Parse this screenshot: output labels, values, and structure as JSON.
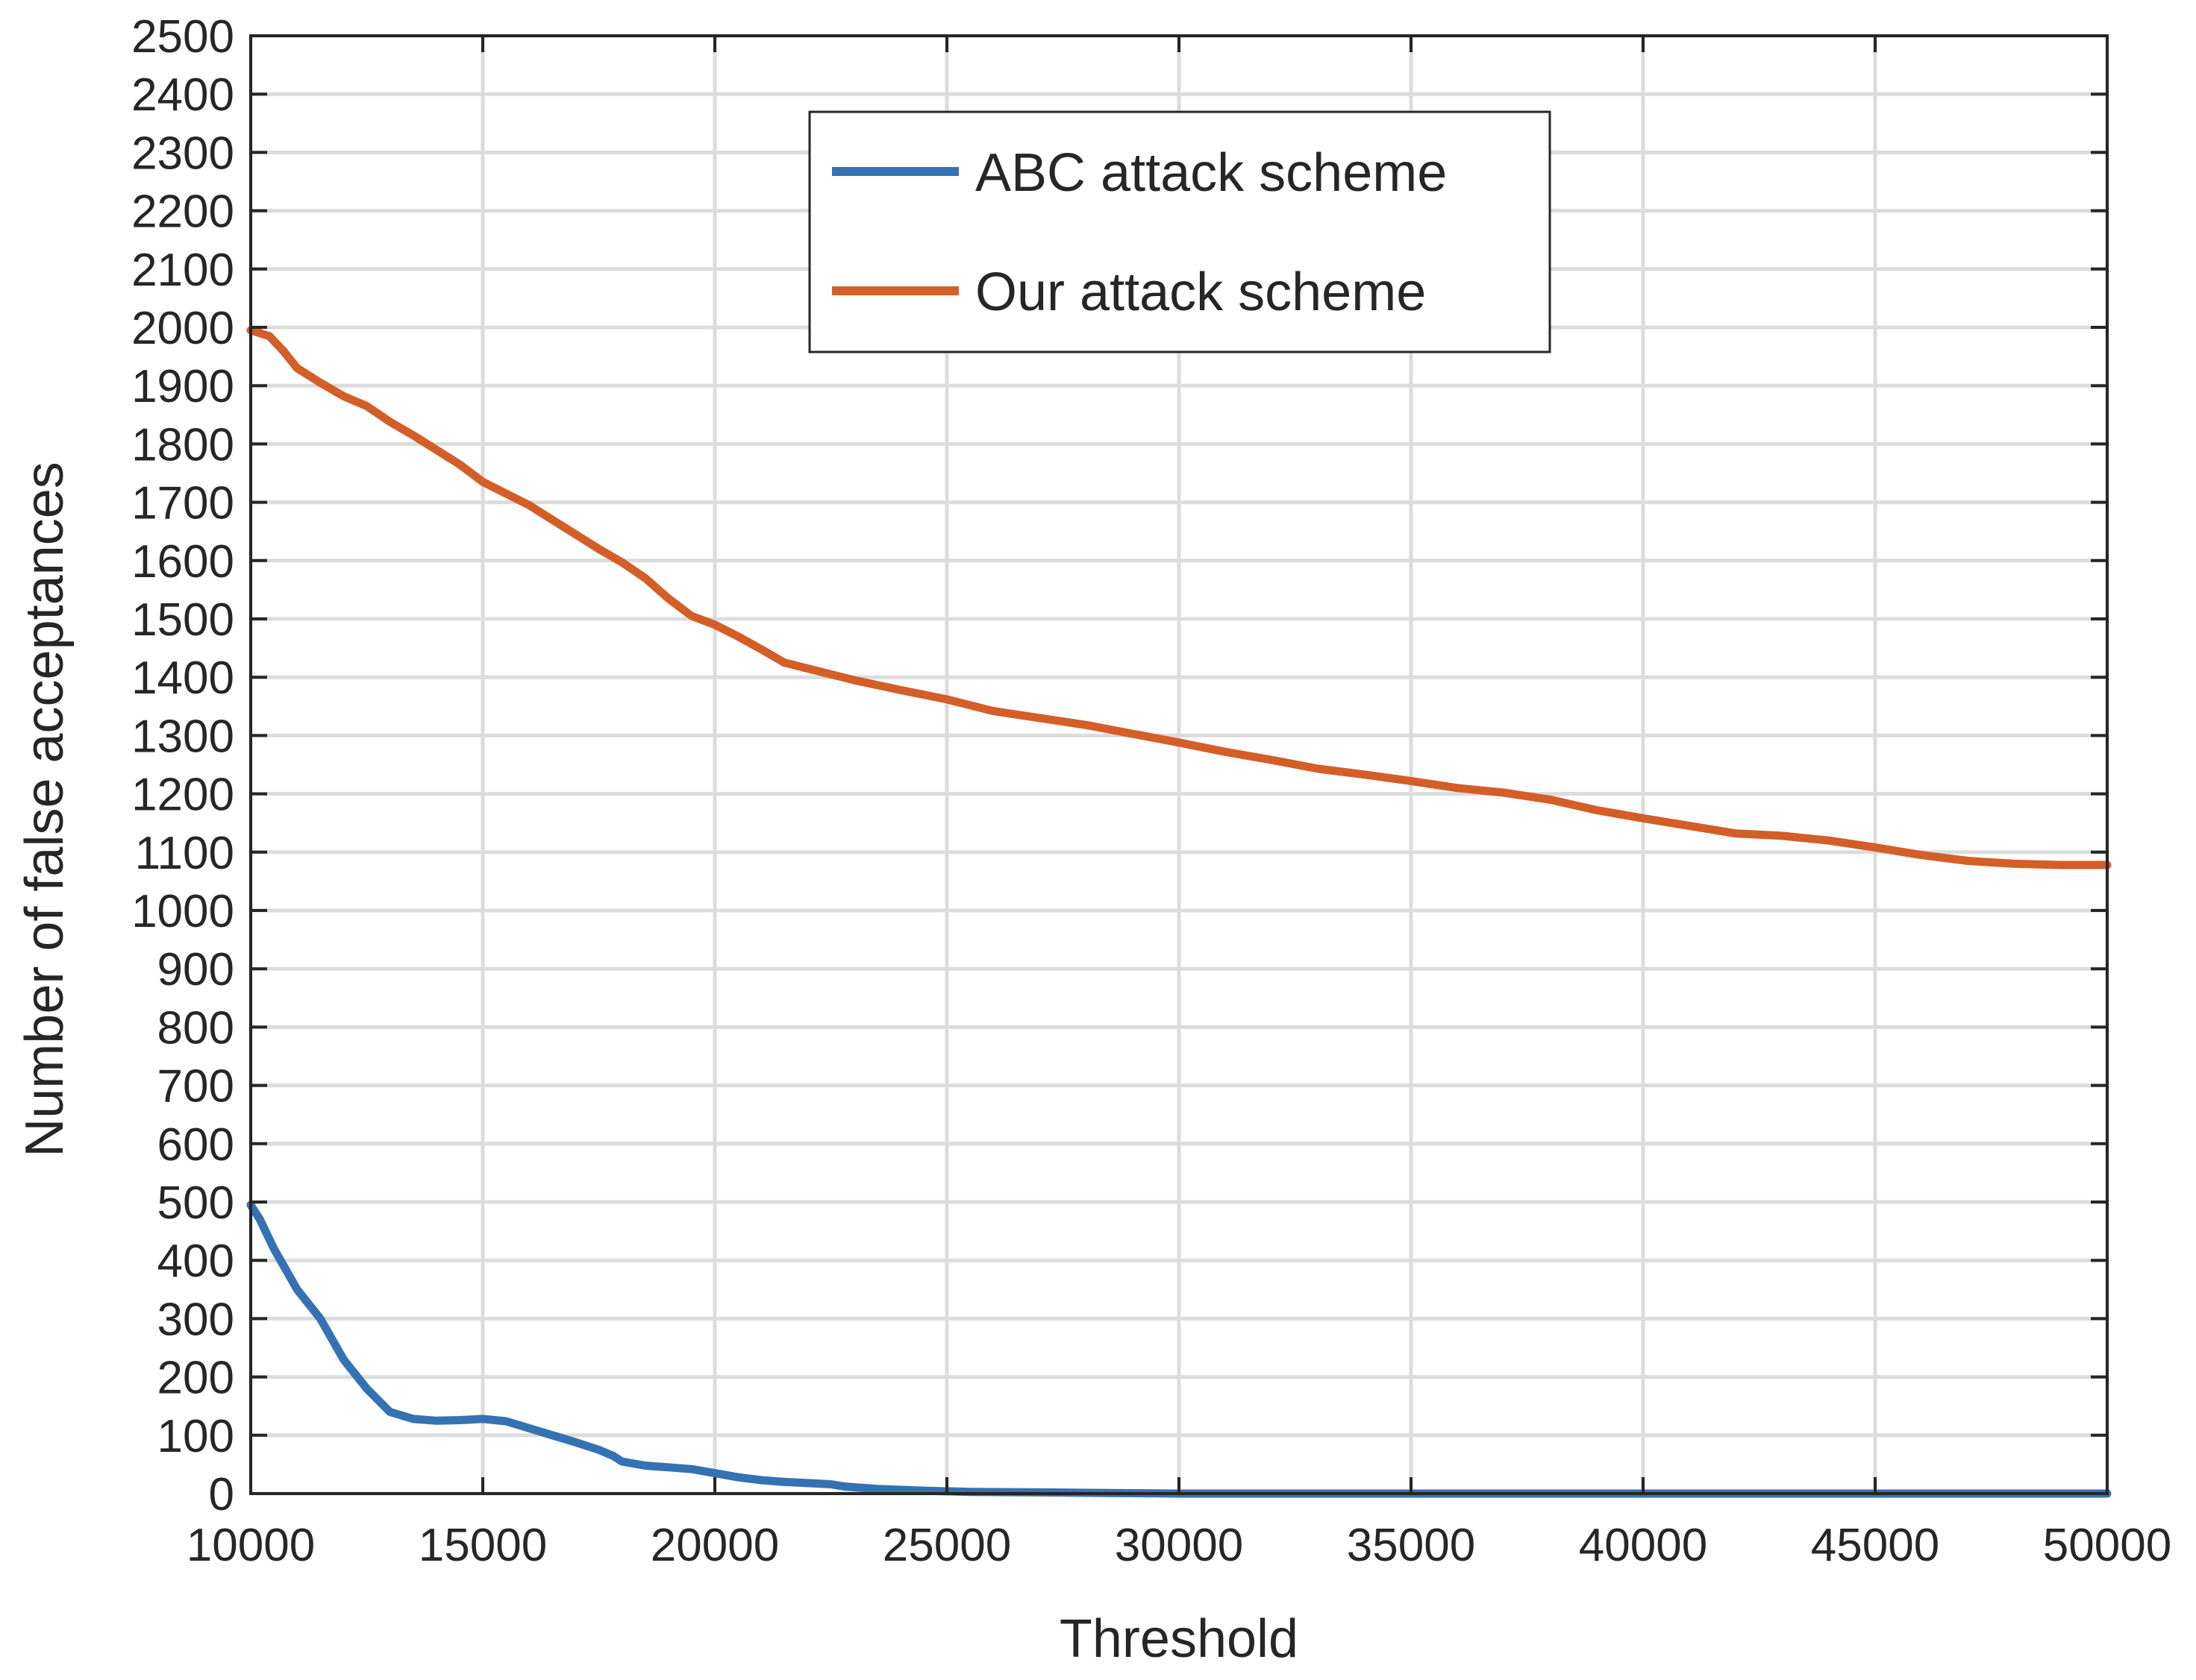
{
  "chart_data": {
    "type": "line",
    "title": "",
    "xlabel": "Threshold",
    "ylabel": "Number of false acceptances",
    "xlim": [
      10000,
      50000
    ],
    "ylim": [
      0,
      2500
    ],
    "xticks": [
      10000,
      15000,
      20000,
      25000,
      30000,
      35000,
      40000,
      45000,
      50000
    ],
    "yticks": [
      0,
      100,
      200,
      300,
      400,
      500,
      600,
      700,
      800,
      900,
      1000,
      1100,
      1200,
      1300,
      1400,
      1500,
      1600,
      1700,
      1800,
      1900,
      2000,
      2100,
      2200,
      2300,
      2400,
      2500
    ],
    "grid": true,
    "legend_position": "top-center",
    "series": [
      {
        "name": "ABC attack scheme",
        "color": "#3472b4",
        "x": [
          10000,
          10200,
          10500,
          11000,
          11500,
          12000,
          12200,
          12500,
          13000,
          13500,
          14000,
          14500,
          15000,
          15500,
          16000,
          16500,
          17000,
          17500,
          17800,
          18000,
          18500,
          19000,
          19500,
          20000,
          20500,
          21000,
          21500,
          22000,
          22500,
          22800,
          23500,
          24500,
          25500,
          27000,
          28500,
          30000,
          35000,
          40000,
          45000,
          50000
        ],
        "y": [
          495,
          470,
          420,
          350,
          300,
          230,
          210,
          180,
          140,
          128,
          125,
          126,
          128,
          124,
          112,
          100,
          88,
          75,
          65,
          55,
          48,
          45,
          42,
          35,
          28,
          23,
          20,
          18,
          16,
          12,
          8,
          5,
          3,
          2,
          1,
          0,
          0,
          0,
          0,
          0
        ]
      },
      {
        "name": "Our attack scheme",
        "color": "#d45e27",
        "x": [
          10000,
          10400,
          10700,
          11000,
          11500,
          12000,
          12500,
          13000,
          13500,
          14000,
          14500,
          15000,
          15500,
          16000,
          16500,
          17000,
          17500,
          18000,
          18500,
          19000,
          19500,
          20000,
          20500,
          21000,
          21500,
          22000,
          22500,
          23000,
          24000,
          25000,
          26000,
          27000,
          28000,
          29000,
          30000,
          31000,
          32000,
          33000,
          34000,
          35000,
          36000,
          37000,
          38000,
          39000,
          40000,
          41000,
          42000,
          43000,
          44000,
          45000,
          46000,
          47000,
          48000,
          49000,
          50000
        ],
        "y": [
          1995,
          1985,
          1960,
          1930,
          1905,
          1882,
          1865,
          1838,
          1815,
          1790,
          1765,
          1735,
          1715,
          1695,
          1670,
          1645,
          1620,
          1597,
          1570,
          1535,
          1505,
          1490,
          1470,
          1448,
          1425,
          1415,
          1405,
          1395,
          1378,
          1362,
          1342,
          1330,
          1318,
          1303,
          1288,
          1272,
          1258,
          1243,
          1233,
          1222,
          1210,
          1202,
          1190,
          1172,
          1158,
          1145,
          1132,
          1128,
          1120,
          1108,
          1095,
          1085,
          1080,
          1078,
          1078
        ]
      }
    ]
  }
}
